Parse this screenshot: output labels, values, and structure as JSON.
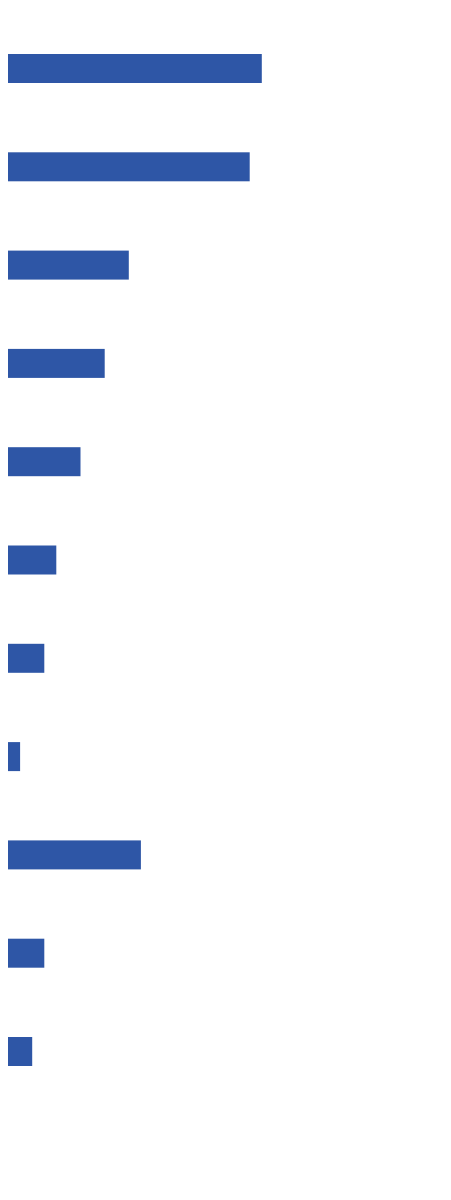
{
  "chart_data": {
    "type": "bar",
    "orientation": "horizontal",
    "values": [
      21,
      20,
      10,
      8,
      6,
      4,
      3,
      1,
      11,
      3,
      2
    ],
    "xlim": [
      0,
      36
    ],
    "grid": false,
    "legend": "none",
    "colors": {
      "bar": "#2e56a6",
      "background": "#ffffff"
    }
  }
}
